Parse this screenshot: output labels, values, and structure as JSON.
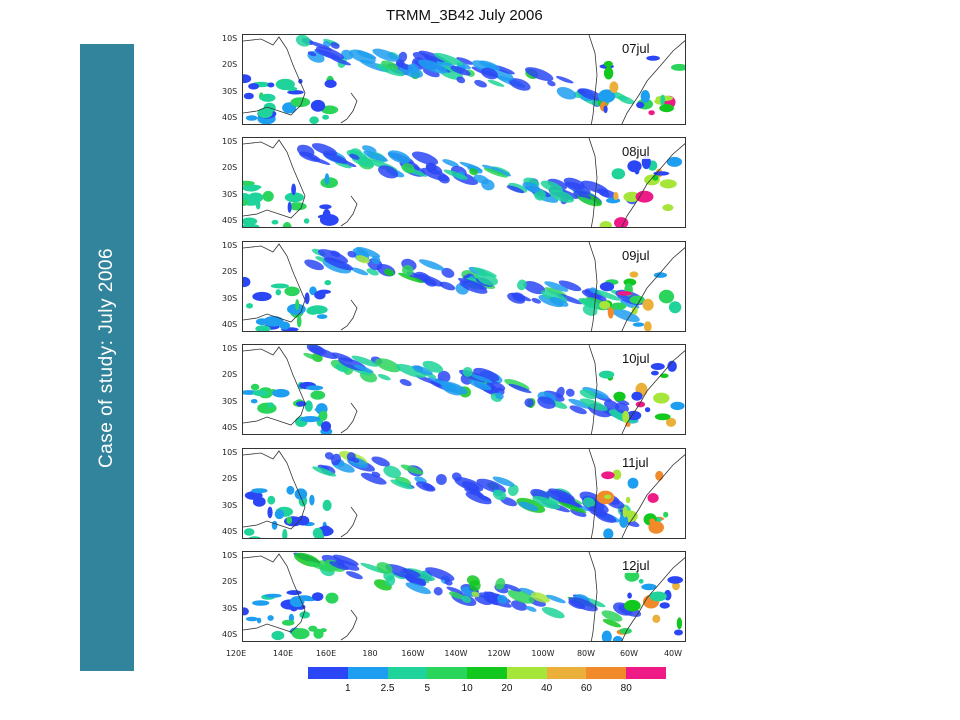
{
  "sidebar": {
    "text": "Case of study: July 2006"
  },
  "figure": {
    "title": "TRMM_3B42 July 2006",
    "panels": [
      {
        "date": "07jul"
      },
      {
        "date": "08jul"
      },
      {
        "date": "09jul"
      },
      {
        "date": "10jul"
      },
      {
        "date": "11jul"
      },
      {
        "date": "12jul"
      }
    ],
    "lat_labels": [
      "10S",
      "20S",
      "30S",
      "40S"
    ],
    "lon_labels": [
      "120E",
      "140E",
      "160E",
      "180",
      "160W",
      "140W",
      "120W",
      "100W",
      "80W",
      "60W",
      "40W"
    ],
    "colorbar": {
      "labels": [
        "1",
        "2.5",
        "5",
        "10",
        "20",
        "40",
        "60",
        "80"
      ],
      "colors": [
        "#2b47f5",
        "#1e9ef0",
        "#1fd39a",
        "#2bd45a",
        "#12c81e",
        "#a6e63a",
        "#ebb03a",
        "#f08a2a",
        "#ee1a86"
      ]
    }
  }
}
